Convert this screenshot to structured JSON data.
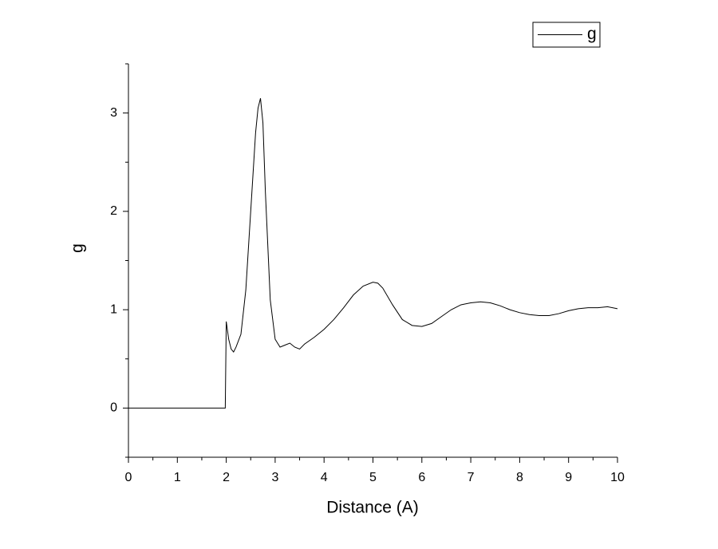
{
  "chart_data": {
    "type": "line",
    "x_label": "Distance (A)",
    "y_label": "g",
    "x": [
      0,
      1.98,
      2.0,
      2.05,
      2.1,
      2.15,
      2.2,
      2.3,
      2.4,
      2.5,
      2.6,
      2.65,
      2.7,
      2.75,
      2.8,
      2.9,
      3.0,
      3.1,
      3.2,
      3.3,
      3.4,
      3.5,
      3.6,
      3.8,
      4.0,
      4.2,
      4.4,
      4.6,
      4.8,
      5.0,
      5.1,
      5.2,
      5.4,
      5.6,
      5.8,
      6.0,
      6.2,
      6.4,
      6.6,
      6.8,
      7.0,
      7.2,
      7.4,
      7.6,
      7.8,
      8.0,
      8.2,
      8.4,
      8.6,
      8.8,
      9.0,
      9.2,
      9.4,
      9.6,
      9.8,
      10.0
    ],
    "series": [
      {
        "name": "g",
        "color": "#000000",
        "values": [
          0,
          0,
          0.88,
          0.7,
          0.6,
          0.57,
          0.62,
          0.75,
          1.2,
          2.0,
          2.8,
          3.05,
          3.15,
          2.9,
          2.2,
          1.1,
          0.7,
          0.62,
          0.64,
          0.66,
          0.62,
          0.6,
          0.65,
          0.72,
          0.8,
          0.9,
          1.02,
          1.15,
          1.24,
          1.28,
          1.27,
          1.22,
          1.05,
          0.9,
          0.84,
          0.83,
          0.86,
          0.93,
          1.0,
          1.05,
          1.07,
          1.08,
          1.07,
          1.04,
          1.0,
          0.97,
          0.95,
          0.94,
          0.94,
          0.96,
          0.99,
          1.01,
          1.02,
          1.02,
          1.03,
          1.01
        ]
      }
    ],
    "xlim": [
      0,
      10
    ],
    "xticks": [
      0,
      1,
      2,
      3,
      4,
      5,
      6,
      7,
      8,
      9,
      10
    ],
    "xminorticks": [
      0.5,
      1.5,
      2.5,
      3.5,
      4.5,
      5.5,
      6.5,
      7.5,
      8.5,
      9.5
    ],
    "ylim": [
      -0.5,
      3.5
    ],
    "yticks": [
      0,
      1,
      2,
      3
    ],
    "yminorticks": [
      -0.5,
      0.5,
      1.5,
      2.5,
      3.5
    ],
    "grid": false,
    "legend": "top-right"
  }
}
